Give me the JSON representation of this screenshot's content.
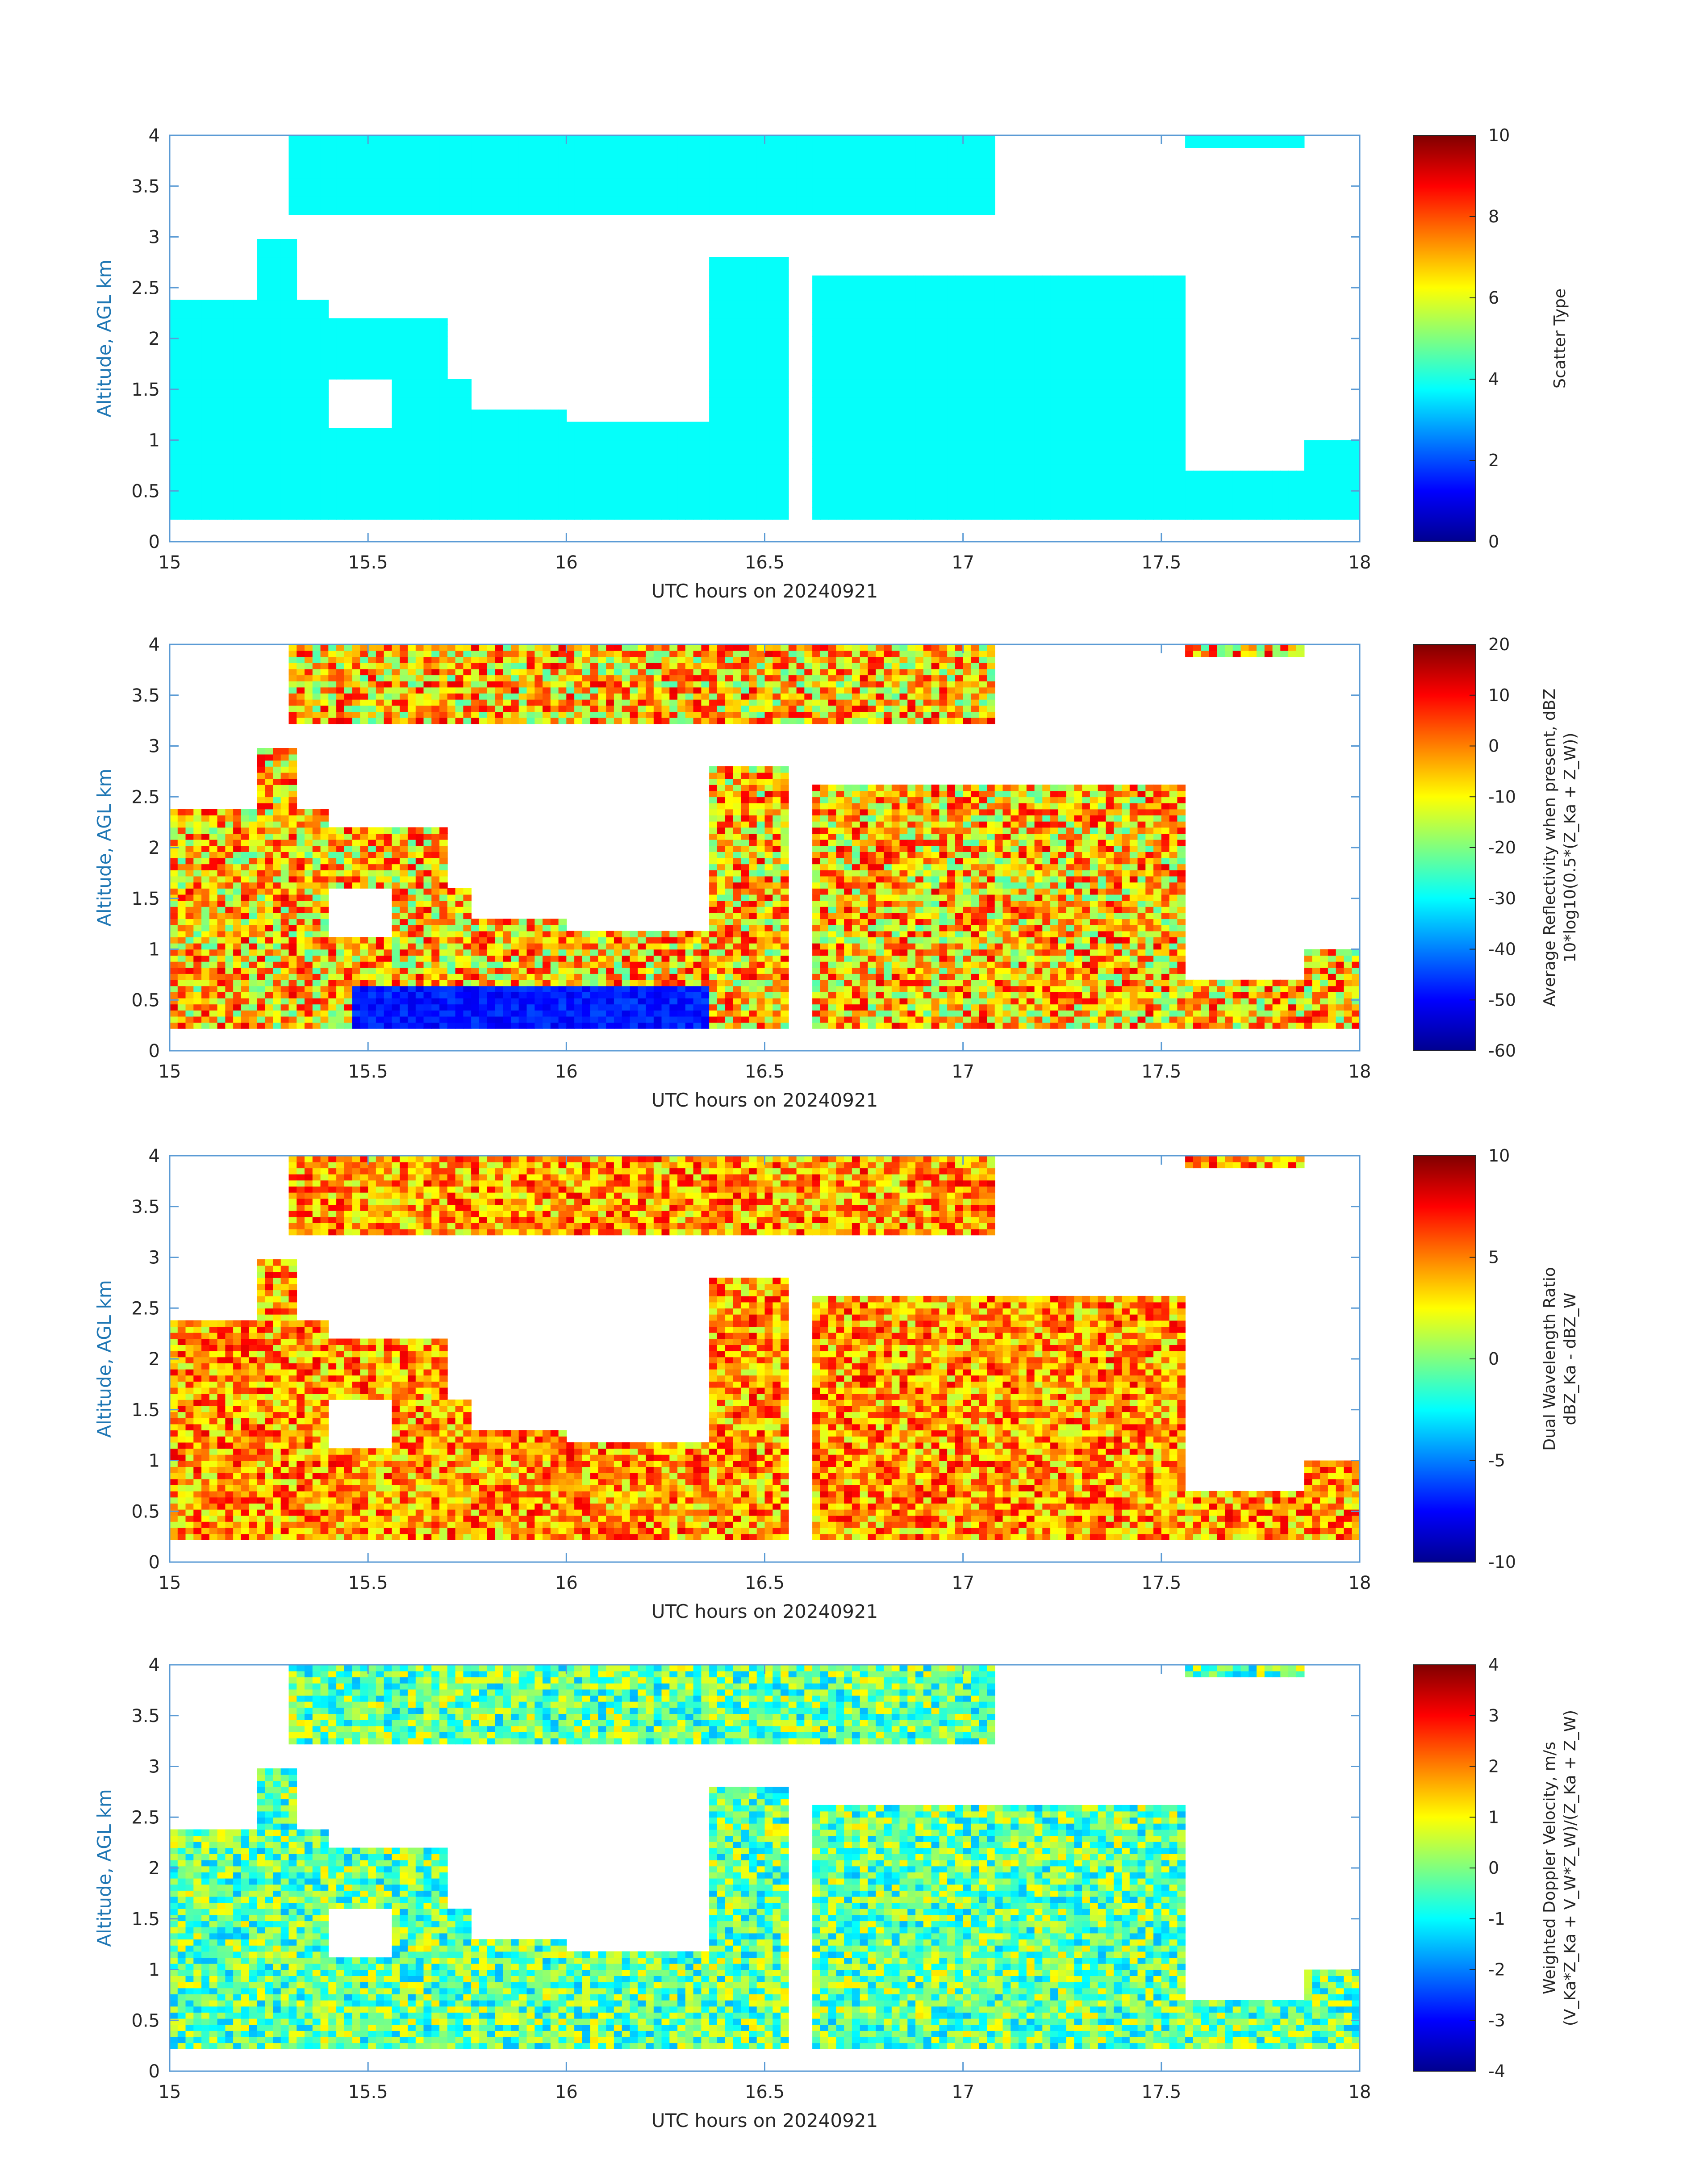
{
  "figure": {
    "xlabel": "UTC hours on 20240921",
    "ylabel": "Altitude, AGL km"
  },
  "chart_data": [
    {
      "type": "heatmap",
      "xlim": [
        15,
        18
      ],
      "ylim": [
        0,
        4
      ],
      "xticks": [
        "15",
        "15.5",
        "16",
        "16.5",
        "17",
        "17.5",
        "18"
      ],
      "yticks": [
        "0",
        "0.5",
        "1",
        "1.5",
        "2",
        "2.5",
        "3",
        "3.5",
        "4"
      ],
      "xlabel": "UTC hours on 20240921",
      "ylabel": "Altitude, AGL km",
      "colorbar": {
        "label_lines": [
          "Scatter Type"
        ],
        "range": [
          0,
          10
        ],
        "ticks": [
          "0",
          "2",
          "4",
          "6",
          "8",
          "10"
        ]
      }
    },
    {
      "type": "heatmap",
      "xlim": [
        15,
        18
      ],
      "ylim": [
        0,
        4
      ],
      "xticks": [
        "15",
        "15.5",
        "16",
        "16.5",
        "17",
        "17.5",
        "18"
      ],
      "yticks": [
        "0",
        "0.5",
        "1",
        "1.5",
        "2",
        "2.5",
        "3",
        "3.5",
        "4"
      ],
      "xlabel": "UTC hours on 20240921",
      "ylabel": "Altitude, AGL km",
      "colorbar": {
        "label_lines": [
          "Average Reflectivity when present, dBZ",
          "10*log10(0.5*(Z_Ka + Z_W))"
        ],
        "range": [
          -60,
          20
        ],
        "ticks": [
          "-60",
          "-50",
          "-40",
          "-30",
          "-20",
          "-10",
          "0",
          "10",
          "20"
        ]
      }
    },
    {
      "type": "heatmap",
      "xlim": [
        15,
        18
      ],
      "ylim": [
        0,
        4
      ],
      "xticks": [
        "15",
        "15.5",
        "16",
        "16.5",
        "17",
        "17.5",
        "18"
      ],
      "yticks": [
        "0",
        "0.5",
        "1",
        "1.5",
        "2",
        "2.5",
        "3",
        "3.5",
        "4"
      ],
      "xlabel": "UTC hours on 20240921",
      "ylabel": "Altitude, AGL km",
      "colorbar": {
        "label_lines": [
          "Dual Wavelength Ratio",
          "dBZ_Ka - dBZ_W"
        ],
        "range": [
          -10,
          10
        ],
        "ticks": [
          "-10",
          "-5",
          "0",
          "5",
          "10"
        ]
      }
    },
    {
      "type": "heatmap",
      "xlim": [
        15,
        18
      ],
      "ylim": [
        0,
        4
      ],
      "xticks": [
        "15",
        "15.5",
        "16",
        "16.5",
        "17",
        "17.5",
        "18"
      ],
      "yticks": [
        "0",
        "0.5",
        "1",
        "1.5",
        "2",
        "2.5",
        "3",
        "3.5",
        "4"
      ],
      "xlabel": "UTC hours on 20240921",
      "ylabel": "Altitude, AGL km",
      "colorbar": {
        "label_lines": [
          "Weighted Doppler Velocity, m/s",
          "(V_Ka*Z_Ka + V_W*Z_W)/(Z_Ka + Z_W)"
        ],
        "range": [
          -4,
          4
        ],
        "ticks": [
          "-4",
          "-3",
          "-2",
          "-1",
          "0",
          "1",
          "2",
          "3",
          "4"
        ]
      }
    }
  ]
}
